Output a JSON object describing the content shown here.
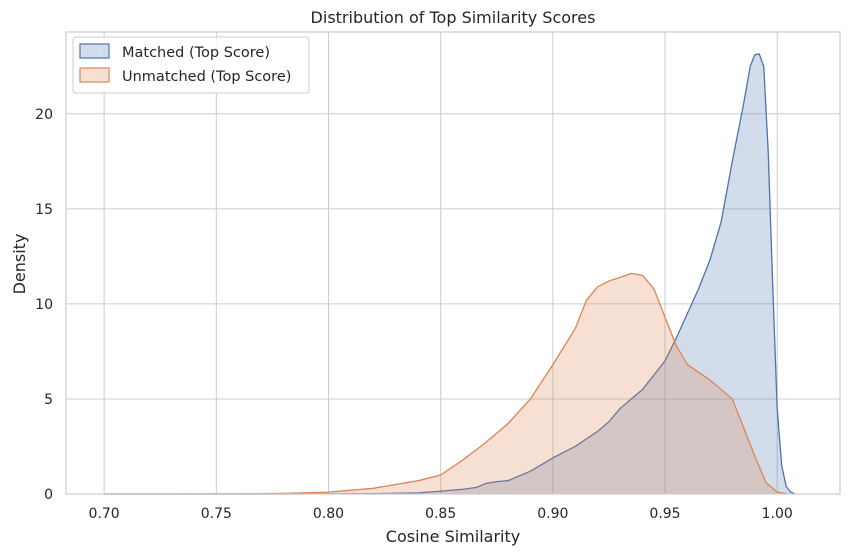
{
  "chart_data": {
    "type": "area",
    "title": "Distribution of Top Similarity Scores",
    "xlabel": "Cosine Similarity",
    "ylabel": "Density",
    "xlim": [
      0.683,
      1.028
    ],
    "ylim": [
      0,
      24.3
    ],
    "grid": true,
    "legend_position": "top-left",
    "x_ticks": [
      0.7,
      0.75,
      0.8,
      0.85,
      0.9,
      0.95,
      1.0
    ],
    "x_tick_labels": [
      "0.70",
      "0.75",
      "0.80",
      "0.85",
      "0.90",
      "0.95",
      "1.00"
    ],
    "y_ticks": [
      0,
      5,
      10,
      15,
      20
    ],
    "y_tick_labels": [
      "0",
      "5",
      "10",
      "15",
      "20"
    ],
    "series": [
      {
        "name": "Matched (Top Score)",
        "line_color": "#4c72b0",
        "fill_color": "#4c72b0",
        "fill_opacity": 0.25,
        "x": [
          0.7,
          0.78,
          0.82,
          0.84,
          0.85,
          0.86,
          0.866,
          0.87,
          0.875,
          0.88,
          0.89,
          0.9,
          0.91,
          0.92,
          0.925,
          0.93,
          0.94,
          0.95,
          0.955,
          0.96,
          0.965,
          0.97,
          0.975,
          0.98,
          0.985,
          0.988,
          0.99,
          0.992,
          0.994,
          0.996,
          0.998,
          1.0,
          1.002,
          1.004,
          1.006,
          1.008
        ],
        "y": [
          0,
          0,
          0.02,
          0.06,
          0.15,
          0.25,
          0.35,
          0.55,
          0.65,
          0.7,
          1.2,
          1.9,
          2.5,
          3.3,
          3.8,
          4.5,
          5.5,
          7.0,
          8.2,
          9.5,
          10.8,
          12.3,
          14.3,
          17.5,
          20.5,
          22.5,
          23.1,
          23.15,
          22.5,
          18.0,
          11.0,
          4.5,
          1.5,
          0.4,
          0.1,
          0
        ]
      },
      {
        "name": "Unmatched (Top Score)",
        "line_color": "#dd8452",
        "fill_color": "#dd8452",
        "fill_opacity": 0.25,
        "x": [
          0.7,
          0.76,
          0.78,
          0.8,
          0.82,
          0.84,
          0.85,
          0.86,
          0.87,
          0.88,
          0.89,
          0.9,
          0.91,
          0.915,
          0.92,
          0.925,
          0.93,
          0.935,
          0.94,
          0.945,
          0.95,
          0.955,
          0.96,
          0.97,
          0.98,
          0.985,
          0.99,
          0.995,
          1.0,
          1.005
        ],
        "y": [
          0,
          0.01,
          0.03,
          0.1,
          0.3,
          0.7,
          1.0,
          1.8,
          2.7,
          3.7,
          5.0,
          6.8,
          8.7,
          10.2,
          10.9,
          11.2,
          11.4,
          11.6,
          11.5,
          10.8,
          9.3,
          7.8,
          6.8,
          6.0,
          5.0,
          3.5,
          2.0,
          0.6,
          0.1,
          0
        ]
      }
    ]
  }
}
